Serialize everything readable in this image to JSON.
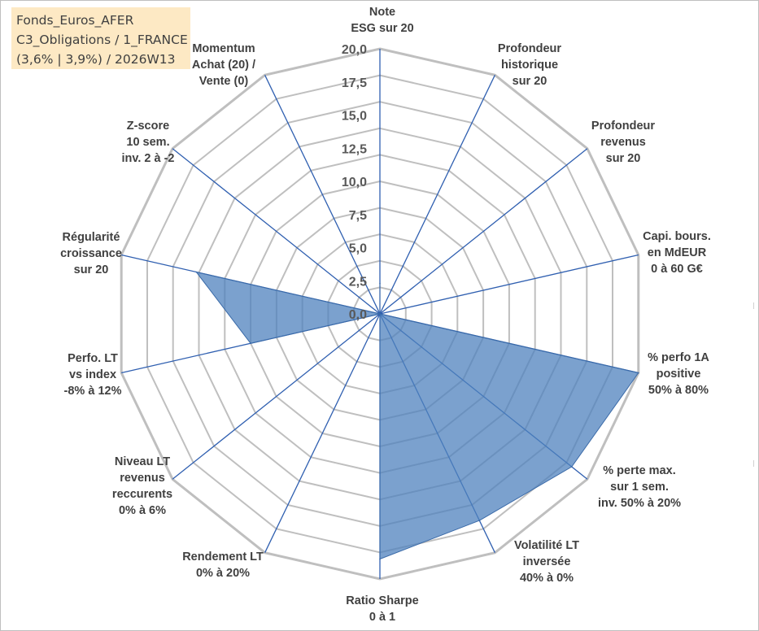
{
  "legend": {
    "line1": "Fonds_Euros_AFER",
    "line2": "C3_Obligations / 1_FRANCE",
    "line3": "(3,6% | 3,9%) / 2026W13"
  },
  "chart_data": {
    "type": "radar",
    "rmin": 0,
    "rmax": 20,
    "ticks": [
      "0,0",
      "2,5",
      "5,0",
      "7,5",
      "10,0",
      "12,5",
      "15,0",
      "17,5",
      "20,0"
    ],
    "tick_values": [
      0,
      2.5,
      5,
      7.5,
      10,
      12.5,
      15,
      17.5,
      20
    ],
    "grid_levels": 10,
    "grid": true,
    "fill_color": "#4f81bd",
    "grid_color": "#bfbfbf",
    "axis_color": "#2f5fb0",
    "axes": [
      {
        "label": [
          "Note",
          "ESG sur 20"
        ]
      },
      {
        "label": [
          "Profondeur",
          "historique",
          "sur 20"
        ]
      },
      {
        "label": [
          "Profondeur",
          "revenus",
          "sur 20"
        ]
      },
      {
        "label": [
          "Capi. bours.",
          "en MdEUR",
          "0 à 60 G€"
        ]
      },
      {
        "label": [
          "% perfo 1A",
          "positive",
          "50% à 80%"
        ]
      },
      {
        "label": [
          "% perte max.",
          "sur 1 sem.",
          "inv. 50% à 20%"
        ]
      },
      {
        "label": [
          "Volatilité LT",
          "inversée",
          "40% à 0%"
        ]
      },
      {
        "label": [
          "Ratio Sharpe",
          "0 à 1"
        ]
      },
      {
        "label": [
          "Rendement LT",
          "0% à 20%"
        ]
      },
      {
        "label": [
          "Niveau LT",
          "revenus",
          "reccurents",
          "0% à 6%"
        ]
      },
      {
        "label": [
          "Perfo. LT",
          "vs index",
          "-8% à 12%"
        ]
      },
      {
        "label": [
          "Régularité",
          "croissance",
          "sur 20"
        ]
      },
      {
        "label": [
          "Z-score",
          "10 sem.",
          "inv. 2 à -2"
        ]
      },
      {
        "label": [
          "Momentum",
          "Achat (20) /",
          "Vente (0)"
        ]
      }
    ],
    "series": [
      {
        "values": [
          2.3,
          0,
          0,
          0,
          20,
          18.5,
          17.3,
          18.5,
          0,
          0,
          10,
          14.2,
          0,
          0
        ]
      }
    ]
  }
}
